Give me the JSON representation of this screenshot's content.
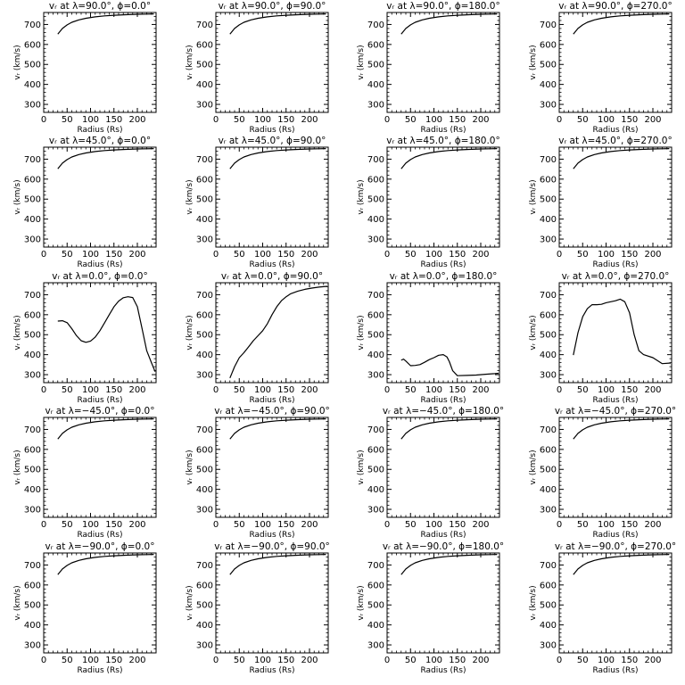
{
  "figure": {
    "xlabel": "Radius (Rs)",
    "ylabel": "vᵣ (km/s)",
    "xticks": [
      0,
      50,
      100,
      150,
      200
    ],
    "yticks": [
      300,
      400,
      500,
      600,
      700
    ],
    "xlim": [
      0,
      240
    ],
    "ylim": [
      260,
      760
    ]
  },
  "chart_data": [
    {
      "type": "line",
      "title": "vᵣ at λ=90.0°, ϕ=0.0°",
      "x": [
        30,
        40,
        50,
        60,
        75,
        90,
        110,
        130,
        150,
        175,
        200,
        220,
        235
      ],
      "y": [
        652,
        680,
        698,
        711,
        723,
        731,
        738,
        743,
        746,
        749,
        751,
        752,
        753
      ]
    },
    {
      "type": "line",
      "title": "vᵣ at λ=90.0°, ϕ=90.0°",
      "x": [
        30,
        40,
        50,
        60,
        75,
        90,
        110,
        130,
        150,
        175,
        200,
        220,
        235
      ],
      "y": [
        652,
        680,
        698,
        711,
        723,
        731,
        738,
        743,
        746,
        749,
        751,
        752,
        753
      ]
    },
    {
      "type": "line",
      "title": "vᵣ at λ=90.0°, ϕ=180.0°",
      "x": [
        30,
        40,
        50,
        60,
        75,
        90,
        110,
        130,
        150,
        175,
        200,
        220,
        235
      ],
      "y": [
        652,
        680,
        698,
        711,
        723,
        731,
        738,
        743,
        746,
        749,
        751,
        752,
        753
      ]
    },
    {
      "type": "line",
      "title": "vᵣ at λ=90.0°, ϕ=270.0°",
      "x": [
        30,
        40,
        50,
        60,
        75,
        90,
        110,
        130,
        150,
        175,
        200,
        220,
        235
      ],
      "y": [
        652,
        680,
        698,
        711,
        723,
        731,
        738,
        743,
        746,
        749,
        751,
        752,
        753
      ]
    },
    {
      "type": "line",
      "title": "vᵣ at λ=45.0°, ϕ=0.0°",
      "x": [
        30,
        40,
        50,
        60,
        75,
        90,
        110,
        130,
        150,
        175,
        200,
        220,
        235
      ],
      "y": [
        652,
        680,
        698,
        711,
        723,
        731,
        738,
        743,
        746,
        749,
        751,
        752,
        753
      ]
    },
    {
      "type": "line",
      "title": "vᵣ at λ=45.0°, ϕ=90.0°",
      "x": [
        30,
        40,
        50,
        60,
        75,
        90,
        110,
        130,
        150,
        175,
        200,
        220,
        235
      ],
      "y": [
        652,
        680,
        698,
        711,
        723,
        731,
        738,
        743,
        746,
        749,
        751,
        752,
        753
      ]
    },
    {
      "type": "line",
      "title": "vᵣ at λ=45.0°, ϕ=180.0°",
      "x": [
        30,
        40,
        50,
        60,
        75,
        90,
        110,
        130,
        150,
        175,
        200,
        220,
        235
      ],
      "y": [
        652,
        680,
        698,
        711,
        723,
        731,
        738,
        743,
        746,
        749,
        751,
        752,
        753
      ]
    },
    {
      "type": "line",
      "title": "vᵣ at λ=45.0°, ϕ=270.0°",
      "x": [
        30,
        40,
        50,
        60,
        75,
        90,
        110,
        130,
        150,
        175,
        200,
        220,
        235
      ],
      "y": [
        652,
        680,
        698,
        711,
        723,
        731,
        738,
        743,
        746,
        749,
        751,
        752,
        753
      ]
    },
    {
      "type": "line",
      "title": "vᵣ at λ=0.0°, ϕ=0.0°",
      "x": [
        30,
        40,
        50,
        60,
        70,
        80,
        90,
        100,
        110,
        120,
        130,
        140,
        150,
        160,
        170,
        180,
        190,
        200,
        210,
        220,
        230,
        238
      ],
      "y": [
        568,
        570,
        560,
        530,
        495,
        470,
        462,
        468,
        488,
        520,
        560,
        600,
        640,
        668,
        685,
        690,
        686,
        640,
        530,
        420,
        360,
        315
      ]
    },
    {
      "type": "line",
      "title": "vᵣ at λ=0.0°, ϕ=90.0°",
      "x": [
        30,
        40,
        50,
        60,
        70,
        80,
        90,
        100,
        110,
        120,
        130,
        140,
        150,
        160,
        175,
        190,
        205,
        220,
        238
      ],
      "y": [
        283,
        340,
        385,
        410,
        440,
        470,
        495,
        520,
        555,
        600,
        640,
        670,
        690,
        705,
        718,
        727,
        733,
        738,
        742
      ]
    },
    {
      "type": "line",
      "title": "vᵣ at λ=0.0°, ϕ=180.0°",
      "x": [
        30,
        35,
        40,
        50,
        60,
        70,
        80,
        90,
        100,
        110,
        120,
        128,
        133,
        140,
        150,
        170,
        190,
        210,
        230,
        238
      ],
      "y": [
        372,
        378,
        368,
        345,
        346,
        350,
        362,
        375,
        385,
        397,
        400,
        388,
        365,
        320,
        295,
        296,
        298,
        302,
        305,
        307
      ]
    },
    {
      "type": "line",
      "title": "vᵣ at λ=0.0°, ϕ=270.0°",
      "x": [
        30,
        40,
        50,
        60,
        70,
        80,
        90,
        100,
        110,
        120,
        130,
        140,
        150,
        160,
        170,
        180,
        200,
        220,
        238
      ],
      "y": [
        398,
        510,
        590,
        630,
        650,
        650,
        652,
        660,
        665,
        670,
        678,
        665,
        610,
        500,
        420,
        400,
        385,
        355,
        358
      ]
    },
    {
      "type": "line",
      "title": "vᵣ at λ=−45.0°, ϕ=0.0°",
      "x": [
        30,
        40,
        50,
        60,
        75,
        90,
        110,
        130,
        150,
        175,
        200,
        220,
        235
      ],
      "y": [
        652,
        680,
        698,
        711,
        723,
        731,
        738,
        743,
        746,
        749,
        751,
        752,
        753
      ]
    },
    {
      "type": "line",
      "title": "vᵣ at λ=−45.0°, ϕ=90.0°",
      "x": [
        30,
        40,
        50,
        60,
        75,
        90,
        110,
        130,
        150,
        175,
        200,
        220,
        235
      ],
      "y": [
        652,
        680,
        698,
        711,
        723,
        731,
        738,
        743,
        746,
        749,
        751,
        752,
        753
      ]
    },
    {
      "type": "line",
      "title": "vᵣ at λ=−45.0°, ϕ=180.0°",
      "x": [
        30,
        40,
        50,
        60,
        75,
        90,
        110,
        130,
        150,
        175,
        200,
        220,
        235
      ],
      "y": [
        652,
        680,
        698,
        711,
        723,
        731,
        738,
        743,
        746,
        749,
        751,
        752,
        753
      ]
    },
    {
      "type": "line",
      "title": "vᵣ at λ=−45.0°, ϕ=270.0°",
      "x": [
        30,
        40,
        50,
        60,
        75,
        90,
        110,
        130,
        150,
        175,
        200,
        220,
        235
      ],
      "y": [
        652,
        680,
        698,
        711,
        723,
        731,
        738,
        743,
        746,
        749,
        751,
        752,
        753
      ]
    },
    {
      "type": "line",
      "title": "vᵣ at λ=−90.0°, ϕ=0.0°",
      "x": [
        30,
        40,
        50,
        60,
        75,
        90,
        110,
        130,
        150,
        175,
        200,
        220,
        235
      ],
      "y": [
        652,
        680,
        698,
        711,
        723,
        731,
        738,
        743,
        746,
        749,
        751,
        752,
        753
      ]
    },
    {
      "type": "line",
      "title": "vᵣ at λ=−90.0°, ϕ=90.0°",
      "x": [
        30,
        40,
        50,
        60,
        75,
        90,
        110,
        130,
        150,
        175,
        200,
        220,
        235
      ],
      "y": [
        652,
        680,
        698,
        711,
        723,
        731,
        738,
        743,
        746,
        749,
        751,
        752,
        753
      ]
    },
    {
      "type": "line",
      "title": "vᵣ at λ=−90.0°, ϕ=180.0°",
      "x": [
        30,
        40,
        50,
        60,
        75,
        90,
        110,
        130,
        150,
        175,
        200,
        220,
        235
      ],
      "y": [
        652,
        680,
        698,
        711,
        723,
        731,
        738,
        743,
        746,
        749,
        751,
        752,
        753
      ]
    },
    {
      "type": "line",
      "title": "vᵣ at λ=−90.0°, ϕ=270.0°",
      "x": [
        30,
        40,
        50,
        60,
        75,
        90,
        110,
        130,
        150,
        175,
        200,
        220,
        235
      ],
      "y": [
        652,
        680,
        698,
        711,
        723,
        731,
        738,
        743,
        746,
        749,
        751,
        752,
        753
      ]
    }
  ]
}
